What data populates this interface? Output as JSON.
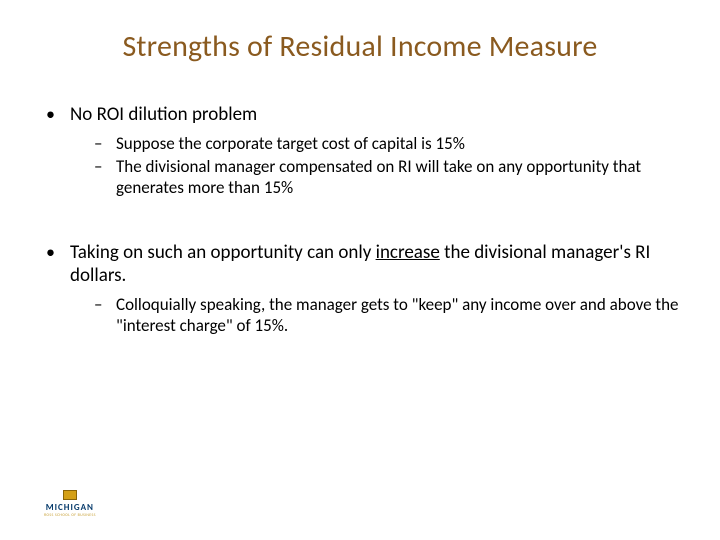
{
  "title": {
    "text": "Strengths of Residual Income Measure",
    "color": "#8a5a1f",
    "fontsize": 30
  },
  "body_fontsize": 19,
  "sub_fontsize": 17,
  "bullets": [
    {
      "text": "No ROI dilution problem",
      "sub": [
        "Suppose the corporate target cost of capital is 15%",
        "The divisional manager compensated on RI will take on any opportunity that generates more than 15%"
      ]
    },
    {
      "text_pre": "Taking on such an opportunity can only ",
      "text_underline": "increase",
      "text_post": " the divisional manager's RI dollars.",
      "sub": [
        "Colloquially speaking, the manager gets to \"keep\" any income over and above the \"interest charge\" of 15%."
      ]
    }
  ],
  "logo": {
    "text": "MICHIGAN",
    "subtext": "ROSS SCHOOL OF BUSINESS",
    "mark_color": "#d4a017",
    "text_color": "#063a6b"
  },
  "colors": {
    "background": "#ffffff",
    "text": "#000000"
  }
}
